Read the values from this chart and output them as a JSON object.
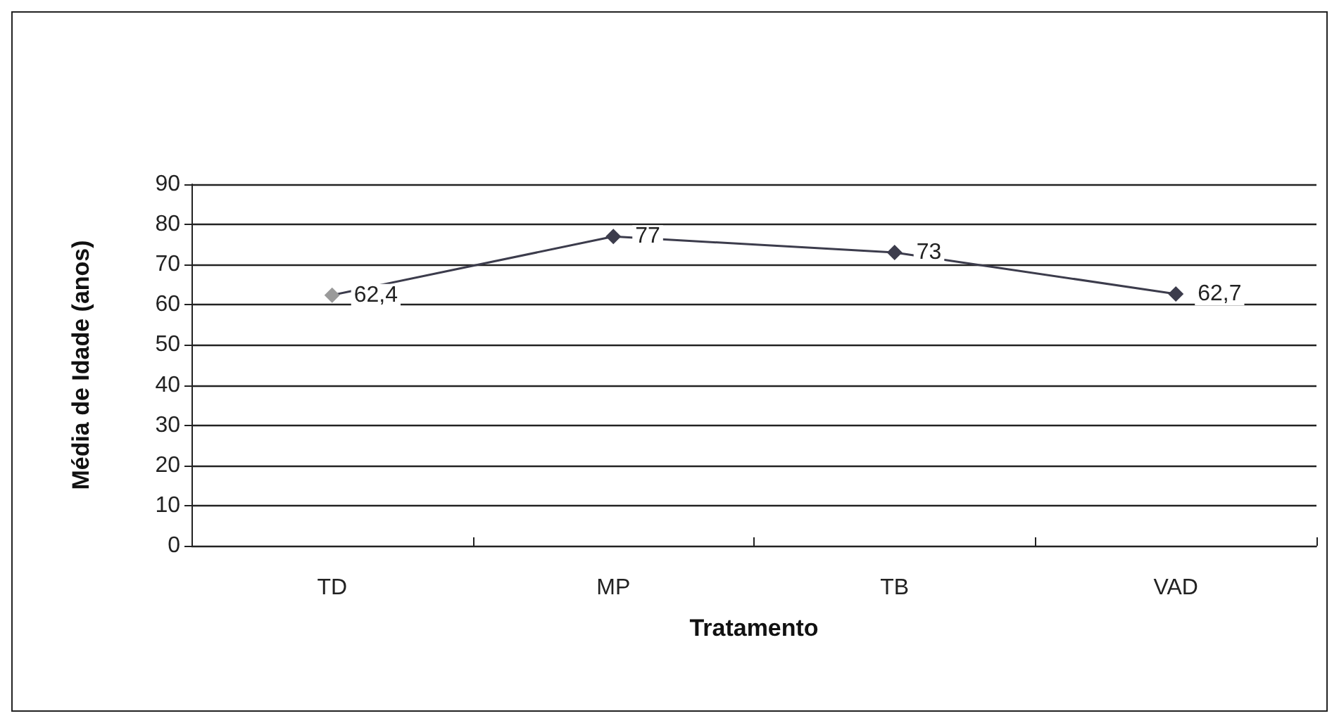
{
  "chart_data": {
    "type": "line",
    "xlabel": "Tratamento",
    "ylabel": "Média de Idade (anos)",
    "categories": [
      "TD",
      "MP",
      "TB",
      "VAD"
    ],
    "series": [
      {
        "color": "#3c3c4c",
        "colors": [
          "#9a9a9a",
          "#3c3c4c",
          "#3c3c4c",
          "#3c3c4c"
        ],
        "values": [
          62.4,
          77,
          73,
          62.7
        ],
        "value_labels": [
          "62,4",
          "77",
          "73",
          "62,7"
        ]
      }
    ],
    "ylim": [
      0,
      90
    ],
    "yticks": [
      0,
      10,
      20,
      30,
      40,
      50,
      60,
      70,
      80,
      90
    ],
    "grid": "y",
    "marker": "diamond",
    "line_style": "solid"
  }
}
